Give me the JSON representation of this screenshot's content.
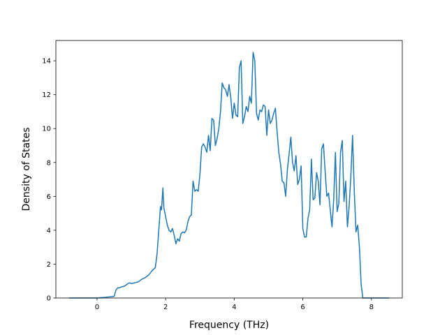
{
  "chart_data": {
    "type": "line",
    "title": "",
    "xlabel": "Frequency (THz)",
    "ylabel": "Density of States",
    "xlim": [
      -1.2,
      8.9
    ],
    "ylim": [
      0,
      15.2
    ],
    "xticks": [
      0,
      2,
      4,
      6,
      8
    ],
    "yticks": [
      0,
      2,
      4,
      6,
      8,
      10,
      12,
      14
    ],
    "xtick_labels": [
      "0",
      "2",
      "4",
      "6",
      "8"
    ],
    "ytick_labels": [
      "0",
      "2",
      "4",
      "6",
      "8",
      "10",
      "12",
      "14"
    ],
    "grid": false,
    "legend": "none",
    "series": [
      {
        "color": "#1f77b4",
        "x": [
          -0.8,
          0.0,
          0.3,
          0.5,
          0.55,
          0.6,
          0.65,
          0.7,
          0.8,
          0.9,
          0.95,
          1.0,
          1.1,
          1.2,
          1.3,
          1.4,
          1.5,
          1.6,
          1.7,
          1.75,
          1.8,
          1.85,
          1.88,
          1.92,
          1.95,
          2.0,
          2.05,
          2.1,
          2.15,
          2.2,
          2.25,
          2.3,
          2.35,
          2.4,
          2.45,
          2.5,
          2.55,
          2.6,
          2.65,
          2.7,
          2.75,
          2.8,
          2.85,
          2.9,
          2.95,
          3.0,
          3.05,
          3.1,
          3.15,
          3.2,
          3.25,
          3.3,
          3.35,
          3.4,
          3.45,
          3.5,
          3.55,
          3.6,
          3.65,
          3.7,
          3.75,
          3.8,
          3.85,
          3.9,
          3.95,
          4.0,
          4.05,
          4.1,
          4.15,
          4.2,
          4.25,
          4.3,
          4.35,
          4.4,
          4.45,
          4.5,
          4.55,
          4.6,
          4.65,
          4.7,
          4.75,
          4.8,
          4.85,
          4.9,
          4.95,
          5.0,
          5.05,
          5.1,
          5.15,
          5.2,
          5.25,
          5.3,
          5.35,
          5.4,
          5.45,
          5.5,
          5.55,
          5.6,
          5.65,
          5.7,
          5.75,
          5.8,
          5.85,
          5.9,
          5.95,
          6.0,
          6.05,
          6.1,
          6.15,
          6.2,
          6.25,
          6.3,
          6.35,
          6.4,
          6.45,
          6.5,
          6.55,
          6.6,
          6.65,
          6.7,
          6.75,
          6.8,
          6.85,
          6.9,
          6.95,
          7.0,
          7.05,
          7.1,
          7.15,
          7.2,
          7.25,
          7.3,
          7.35,
          7.4,
          7.45,
          7.5,
          7.55,
          7.6,
          7.65,
          7.7,
          7.75,
          7.8,
          8.5
        ],
        "y": [
          0.0,
          0.0,
          0.05,
          0.1,
          0.45,
          0.6,
          0.6,
          0.65,
          0.7,
          0.85,
          0.9,
          0.85,
          0.9,
          0.95,
          1.1,
          1.2,
          1.35,
          1.6,
          1.8,
          2.6,
          4.0,
          5.4,
          5.2,
          6.5,
          5.3,
          4.8,
          4.3,
          4.0,
          3.9,
          4.1,
          3.7,
          3.2,
          3.5,
          3.35,
          3.8,
          3.9,
          3.85,
          4.0,
          4.5,
          4.8,
          4.9,
          6.9,
          6.3,
          6.4,
          6.3,
          7.3,
          8.9,
          9.1,
          8.9,
          8.6,
          9.6,
          8.7,
          10.6,
          10.5,
          9.0,
          9.4,
          10.0,
          11.0,
          12.7,
          12.4,
          12.3,
          11.9,
          12.6,
          11.8,
          10.6,
          11.5,
          10.8,
          10.7,
          13.6,
          14.0,
          10.3,
          10.7,
          11.3,
          11.0,
          11.9,
          11.5,
          14.5,
          14.0,
          10.9,
          10.5,
          11.1,
          11.0,
          11.4,
          11.3,
          9.6,
          11.1,
          10.3,
          10.5,
          10.9,
          11.2,
          9.8,
          8.6,
          7.9,
          6.9,
          6.8,
          6.0,
          7.6,
          8.5,
          9.5,
          8.0,
          7.5,
          8.4,
          6.7,
          7.0,
          7.8,
          4.1,
          3.6,
          3.6,
          4.7,
          5.2,
          8.2,
          5.8,
          5.9,
          7.4,
          6.9,
          5.5,
          8.8,
          9.1,
          7.5,
          6.0,
          6.2,
          5.2,
          4.2,
          5.8,
          8.6,
          5.1,
          5.6,
          8.6,
          9.3,
          5.7,
          6.9,
          4.2,
          5.4,
          7.2,
          9.6,
          6.3,
          3.9,
          4.3,
          3.0,
          0.8,
          0.0,
          0.0,
          0.0
        ]
      }
    ]
  }
}
